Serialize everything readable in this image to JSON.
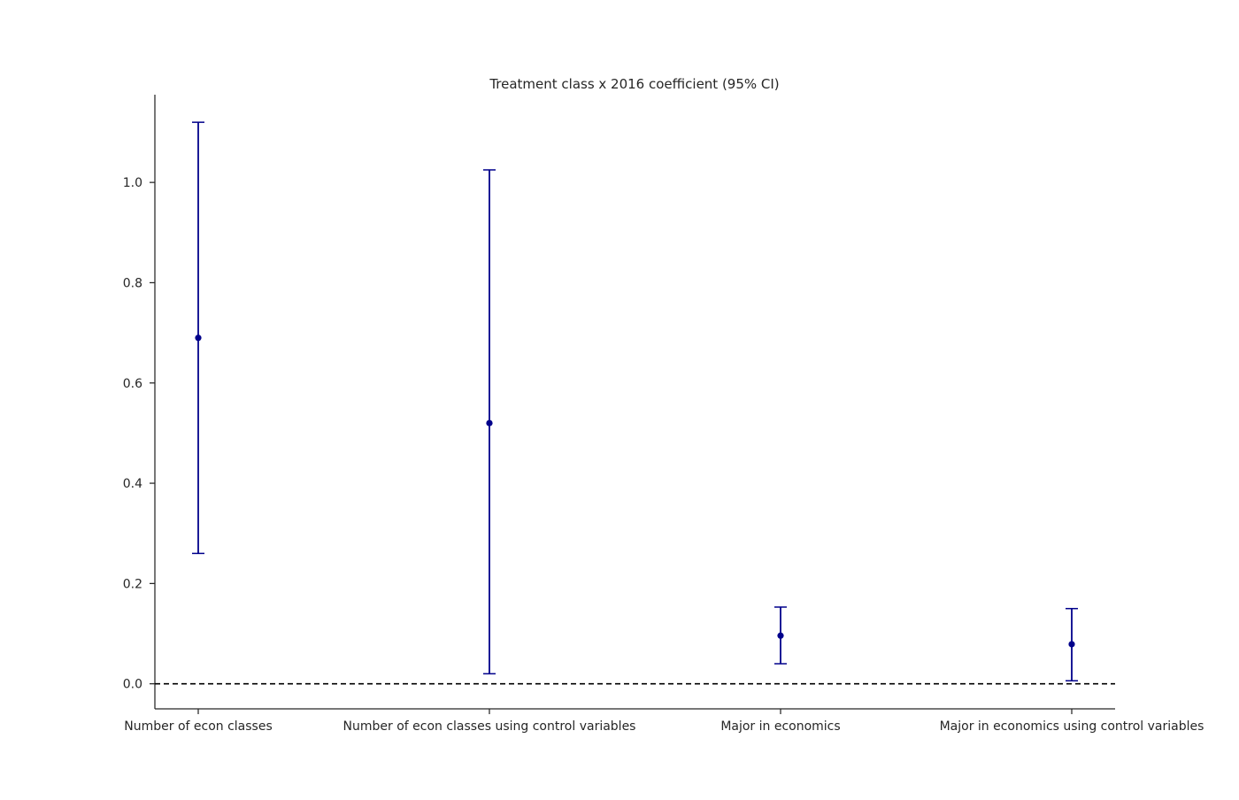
{
  "chart_data": {
    "type": "errorbar",
    "title": "Treatment class x 2016 coefficient (95% CI)",
    "xlabel": "",
    "ylabel": "",
    "categories": [
      "Number of econ classes",
      "Number of econ classes using control variables",
      "Major in economics",
      "Major in economics using control variables"
    ],
    "series": [
      {
        "values": [
          0.69,
          0.52,
          0.096,
          0.079
        ],
        "ci_lower": [
          0.26,
          0.02,
          0.04,
          0.006
        ],
        "ci_upper": [
          1.12,
          1.025,
          0.153,
          0.15
        ]
      }
    ],
    "ylim": [
      -0.05,
      1.175
    ],
    "yticks": [
      "0.0",
      "0.2",
      "0.4",
      "0.6",
      "0.8",
      "1.0"
    ],
    "reference_line": {
      "y": 0.0,
      "style": "dashed"
    },
    "grid": false,
    "legend": "none",
    "colors": {
      "series": "#00008b",
      "axis": "#262626",
      "reference": "#000000"
    }
  }
}
